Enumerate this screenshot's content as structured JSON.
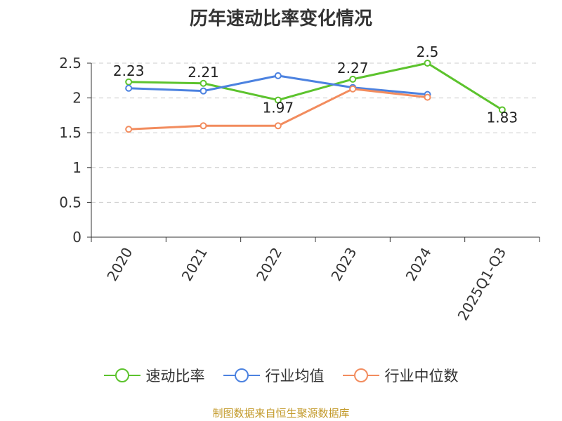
{
  "title": "历年速动比率变化情况",
  "source": "制图数据来自恒生聚源数据库",
  "colors": {
    "series": [
      "#5cc32d",
      "#4c82e0",
      "#f28c5e"
    ],
    "grid": "#cccccc",
    "axis": "#333333",
    "text": "#333333",
    "source": "#c39a2a"
  },
  "chart_data": {
    "type": "line",
    "categories": [
      "2020",
      "2021",
      "2022",
      "2023",
      "2024",
      "2025Q1-Q3"
    ],
    "y_ticks": [
      "0",
      "0.5",
      "1",
      "1.5",
      "2",
      "2.5"
    ],
    "ylim": [
      0,
      2.5
    ],
    "grid": true,
    "legend_position": "bottom",
    "series": [
      {
        "name": "速动比率",
        "values": [
          2.23,
          2.21,
          1.97,
          2.27,
          2.5,
          1.83
        ],
        "labels": [
          "2.23",
          "2.21",
          "1.97",
          "2.27",
          "2.5",
          "1.83"
        ]
      },
      {
        "name": "行业均值",
        "values": [
          2.14,
          2.1,
          2.32,
          2.15,
          2.05,
          null
        ]
      },
      {
        "name": "行业中位数",
        "values": [
          1.55,
          1.6,
          1.6,
          2.13,
          2.01,
          null
        ]
      }
    ]
  }
}
